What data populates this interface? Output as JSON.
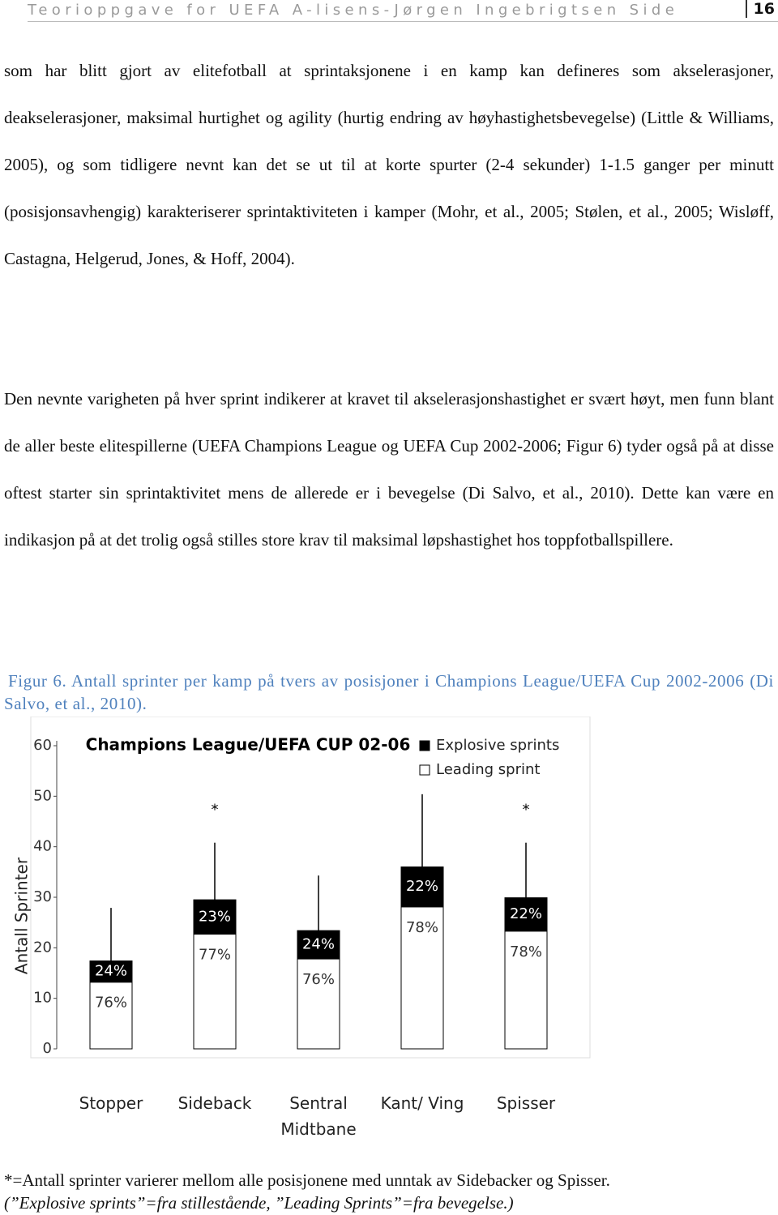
{
  "header": {
    "title": "Teorioppgave for UEFA A-lisens-Jørgen Ingebrigtsen Side",
    "page": "16"
  },
  "paragraphs": [
    "som har blitt gjort av elitefotball at sprintaksjonene i en kamp kan defineres som akselerasjoner, deakselerasjoner, maksimal hurtighet og agility (hurtig endring av høyhastighetsbevegelse) (Little & Williams, 2005), og som tidligere nevnt kan det se ut til at korte spurter (2-4 sekunder) 1-1.5 ganger per minutt (posisjonsavhengig) karakteriserer sprintaktiviteten i kamper (Mohr, et al., 2005; Stølen, et al., 2005; Wisløff, Castagna, Helgerud, Jones, & Hoff, 2004).",
    "Den nevnte varigheten på hver sprint indikerer at kravet til akselerasjonshastighet er svært høyt, men funn blant de aller beste elitespillerne (UEFA Champions League og UEFA Cup 2002-2006; Figur 6) tyder også på at disse oftest starter sin sprintaktivitet mens de allerede er i bevegelse (Di Salvo, et al., 2010). Dette kan være en indikasjon på at det trolig også stilles store krav til maksimal løpshastighet hos toppfotballspillere."
  ],
  "figure_caption": "Figur 6. Antall sprinter per kamp på tvers av posisjoner i Champions League/UEFA Cup 2002-2006 (Di Salvo, et al., 2010).",
  "chart_data": {
    "type": "stacked-bar",
    "title": "Champions League/UEFA CUP 02-06",
    "y_label": "Antall Sprinter",
    "categories": [
      "Stopper",
      "Sideback",
      "Sentral Midtbane",
      "Kant/ Ving",
      "Spisser"
    ],
    "series": [
      {
        "name": "Explosive sprints",
        "color": "#000000",
        "values": [
          4.2,
          6.8,
          5.6,
          7.9,
          6.6
        ],
        "share_labels": [
          "24%",
          "23%",
          "24%",
          "22%",
          "22%"
        ]
      },
      {
        "name": "Leading sprint",
        "color": "#ffffff",
        "values": [
          13.2,
          22.7,
          17.8,
          28.1,
          23.3
        ],
        "share_labels": [
          "76%",
          "77%",
          "76%",
          "78%",
          "78%"
        ]
      }
    ],
    "whiskers": [
      27.9,
      40.8,
      34.3,
      50.4,
      40.8
    ],
    "significance": [
      null,
      "*",
      null,
      null,
      "*"
    ],
    "ylim": [
      0,
      60
    ],
    "yticks": [
      0,
      10,
      20,
      30,
      40,
      50,
      60
    ],
    "legend": "top-right"
  },
  "footnotes": [
    "*=Antall sprinter varierer mellom alle posisjonene med unntak av Sidebacker og Spisser.",
    "(”Explosive sprints”=fra stillestående, ”Leading Sprints”=fra bevegelse.)"
  ]
}
